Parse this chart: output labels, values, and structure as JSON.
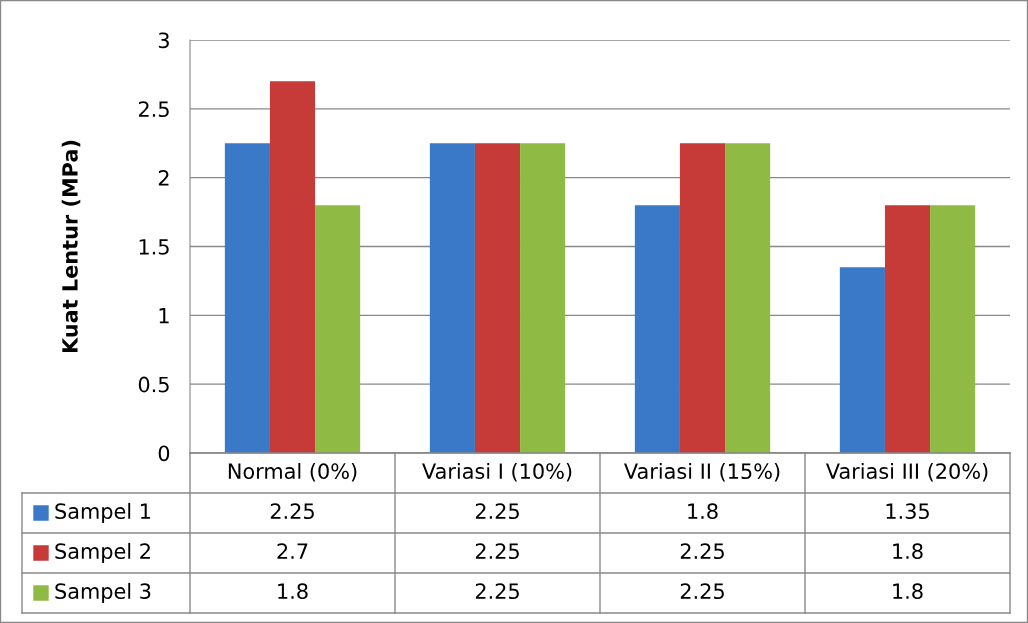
{
  "chart_data": {
    "type": "bar",
    "ylabel": "Kuat Lentur (MPa)",
    "categories": [
      "Normal (0%)",
      "Variasi I (10%)",
      "Variasi II (15%)",
      "Variasi III (20%)"
    ],
    "series": [
      {
        "name": "Sampel 1",
        "color": "#3a78c8",
        "values": [
          2.25,
          2.25,
          1.8,
          1.35
        ]
      },
      {
        "name": "Sampel 2",
        "color": "#c63a38",
        "values": [
          2.7,
          2.25,
          2.25,
          1.8
        ]
      },
      {
        "name": "Sampel 3",
        "color": "#8fbb45",
        "values": [
          1.8,
          2.25,
          2.25,
          1.8
        ]
      }
    ],
    "ylim": [
      0,
      3
    ],
    "yticks": [
      0,
      0.5,
      1,
      1.5,
      2,
      2.5,
      3
    ],
    "grid": "y",
    "legend": "bottom",
    "data_labels": true
  }
}
